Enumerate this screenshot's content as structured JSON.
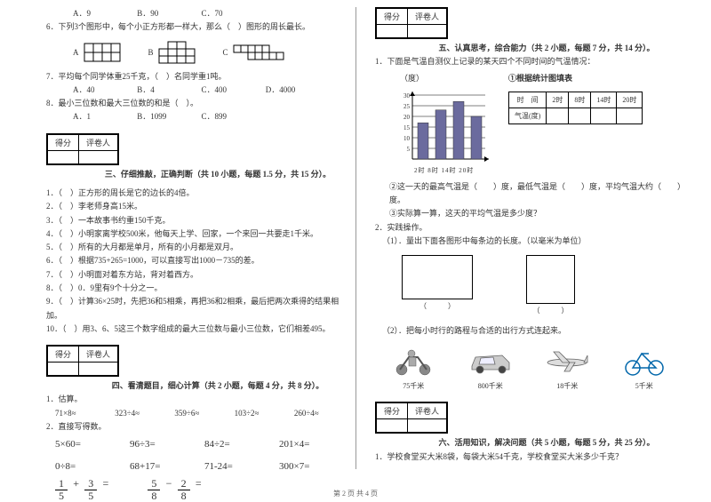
{
  "left": {
    "q5_opts": {
      "a": "A．9",
      "b": "B．90",
      "c": "C．70"
    },
    "q6": "6．下列3个图形中，每个小正方形都一样大，那么（　）图形的周长最长。",
    "q6_labels": {
      "a": "A",
      "b": "B",
      "c": "C"
    },
    "q7": "7．平均每个同学体重25千克，（　）名同学重1吨。",
    "q7_opts": {
      "a": "A．40",
      "b": "B．4",
      "c": "C．400",
      "d": "D．4000"
    },
    "q8": "8．最小三位数和最大三位数的和是（　）。",
    "q8_opts": {
      "a": "A．1",
      "b": "B．1099",
      "c": "C．899"
    },
    "score_label_1": "得分",
    "score_label_2": "评卷人",
    "sec3_title": "三、仔细推敲，正确判断（共 10 小题，每题 1.5 分，共 15 分）。",
    "j1": "1．（　）正方形的周长是它的边长的4倍。",
    "j2": "2．（　）李老师身高15米。",
    "j3": "3．（　）一本故事书约重150千克。",
    "j4": "4．（　）小明家离学校500米，他每天上学、回家，一个来回一共要走1千米。",
    "j5": "5．（　）所有的大月都是单月，所有的小月都是双月。",
    "j6": "6．（　）根据735+265=1000，可以直接写出1000－735的差。",
    "j7": "7．（　）小明面对着东方站，背对着西方。",
    "j8": "8．（　）0．9里有9个十分之一。",
    "j9": "9．（　）计算36×25时，先把36和5相乘，再把36和2相乘，最后把两次乘得的结果相加。",
    "j10": "10．（　）用3、6、5这三个数字组成的最大三位数与最小三位数，它们相差495。",
    "sec4_title": "四、看清题目，细心计算（共 2 小题，每题 4 分，共 8 分）。",
    "c1": "1．估算。",
    "c1_a": "71×8≈",
    "c1_b": "323÷4≈",
    "c1_c": "359÷6≈",
    "c1_d": "103÷2≈",
    "c1_e": "260÷4≈",
    "c2": "2．直接写得数。",
    "r1_a": "5×60=",
    "r1_b": "96÷3=",
    "r1_c": "84÷2=",
    "r1_d": "201×4=",
    "r2_a": "0÷8=",
    "r2_b": "68+17=",
    "r2_c": "71-24=",
    "r2_d": "300×7=",
    "frac1_n": "1",
    "frac1_d": "5",
    "frac2_n": "3",
    "frac2_d": "5",
    "frac3_n": "5",
    "frac3_d": "8",
    "frac4_n": "2",
    "frac4_d": "8"
  },
  "right": {
    "score_label_1": "得分",
    "score_label_2": "评卷人",
    "sec5_title": "五、认真思考，综合能力（共 2 小题，每题 7 分，共 14 分）。",
    "q1": "1．下面是气温自测仪上记录的某天四个不同时间的气温情况：",
    "chart_ylabel": "（度）",
    "chart_title": "①根据统计图填表",
    "chart_yticks": [
      "30",
      "25",
      "20",
      "15",
      "10",
      "5"
    ],
    "chart_xticks": "2时 8时 14时 20时",
    "chart_bars": [
      17,
      23,
      27,
      20
    ],
    "chart_bar_color": "#6b6b9e",
    "table_h0": "时　间",
    "table_h1": "2时",
    "table_h2": "8时",
    "table_h3": "14时",
    "table_h4": "20时",
    "table_r0": "气温(度)",
    "q1_2": "②这一天的最高气温是（　　）度，最低气温是（　　）度，平均气温大约（　　）度。",
    "q1_3": "③实际算一算，这天的平均气温是多少度？",
    "q2": "2．实践操作。",
    "q2_1": "（1）．量出下面各图形中每条边的长度。（以毫米为单位）",
    "rect_lbl": "（　　　）",
    "q2_2": "（2）．把每小时行的路程与合适的出行方式连起来。",
    "t1": "75千米",
    "t2": "800千米",
    "t3": "18千米",
    "t4": "5千米",
    "sec6_title": "六、活用知识，解决问题（共 5 小题，每题 5 分，共 25 分）。",
    "p1": "1．学校食堂买大米8袋，每袋大米54千克，学校食堂买大米多少千克？"
  },
  "footer": "第 2 页 共 4 页"
}
